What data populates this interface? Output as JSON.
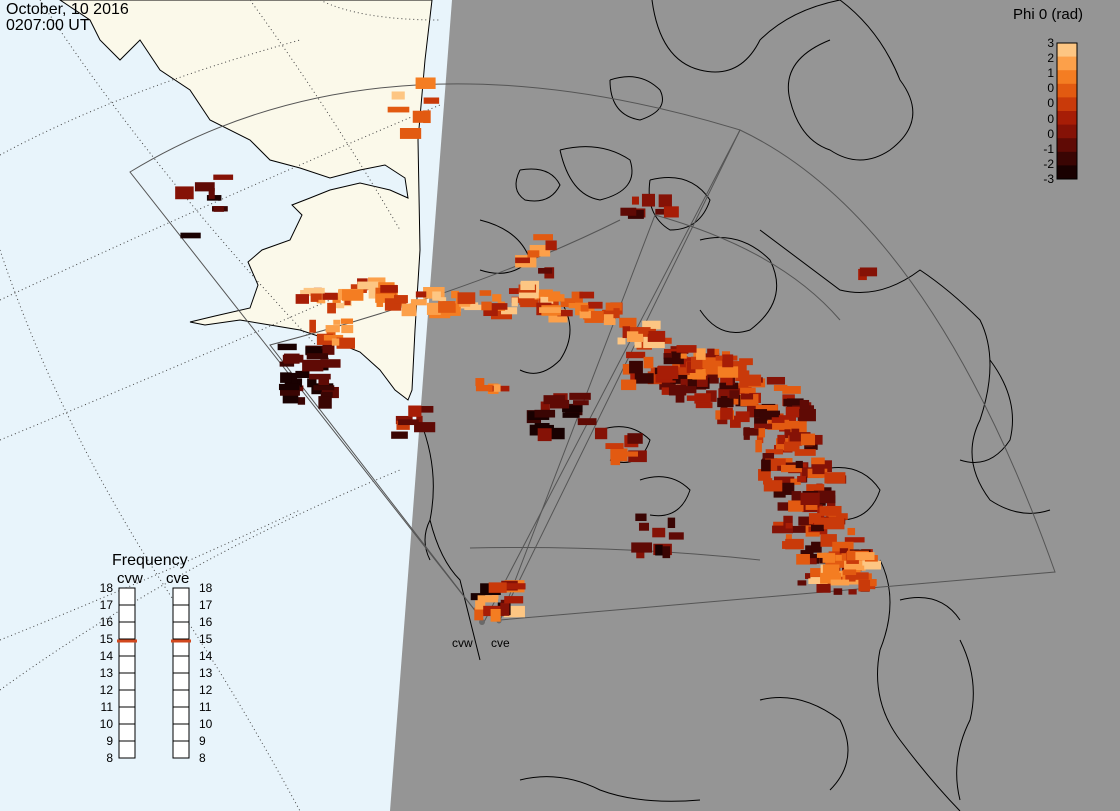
{
  "header": {
    "date": "October, 10 2016",
    "time": "0207:00 UT"
  },
  "colorbar": {
    "title": "Phi 0 (rad)",
    "tick_labels": [
      "3",
      "2",
      "1",
      "0",
      "0",
      "0",
      "0",
      "-1",
      "-2",
      "-3"
    ],
    "colors": [
      "#fdc683",
      "#fca04a",
      "#f47d22",
      "#e25a11",
      "#c93a0a",
      "#a71d06",
      "#851206",
      "#5f0a05",
      "#3a0503",
      "#190101"
    ]
  },
  "radars": {
    "west_label": "cvw",
    "east_label": "cve"
  },
  "frequency_panel": {
    "title": "Frequency",
    "west_label": "cvw",
    "east_label": "cve",
    "scale": [
      "18",
      "17",
      "16",
      "15",
      "14",
      "13",
      "12",
      "11",
      "10",
      "9",
      "8"
    ],
    "west_value": 15,
    "east_value": 15,
    "marker_color": "#d2481e"
  },
  "colors": {
    "ocean": "#e8f4fb",
    "land_day": "#fbf9ea",
    "night": "#959595",
    "coast": "#000000"
  }
}
